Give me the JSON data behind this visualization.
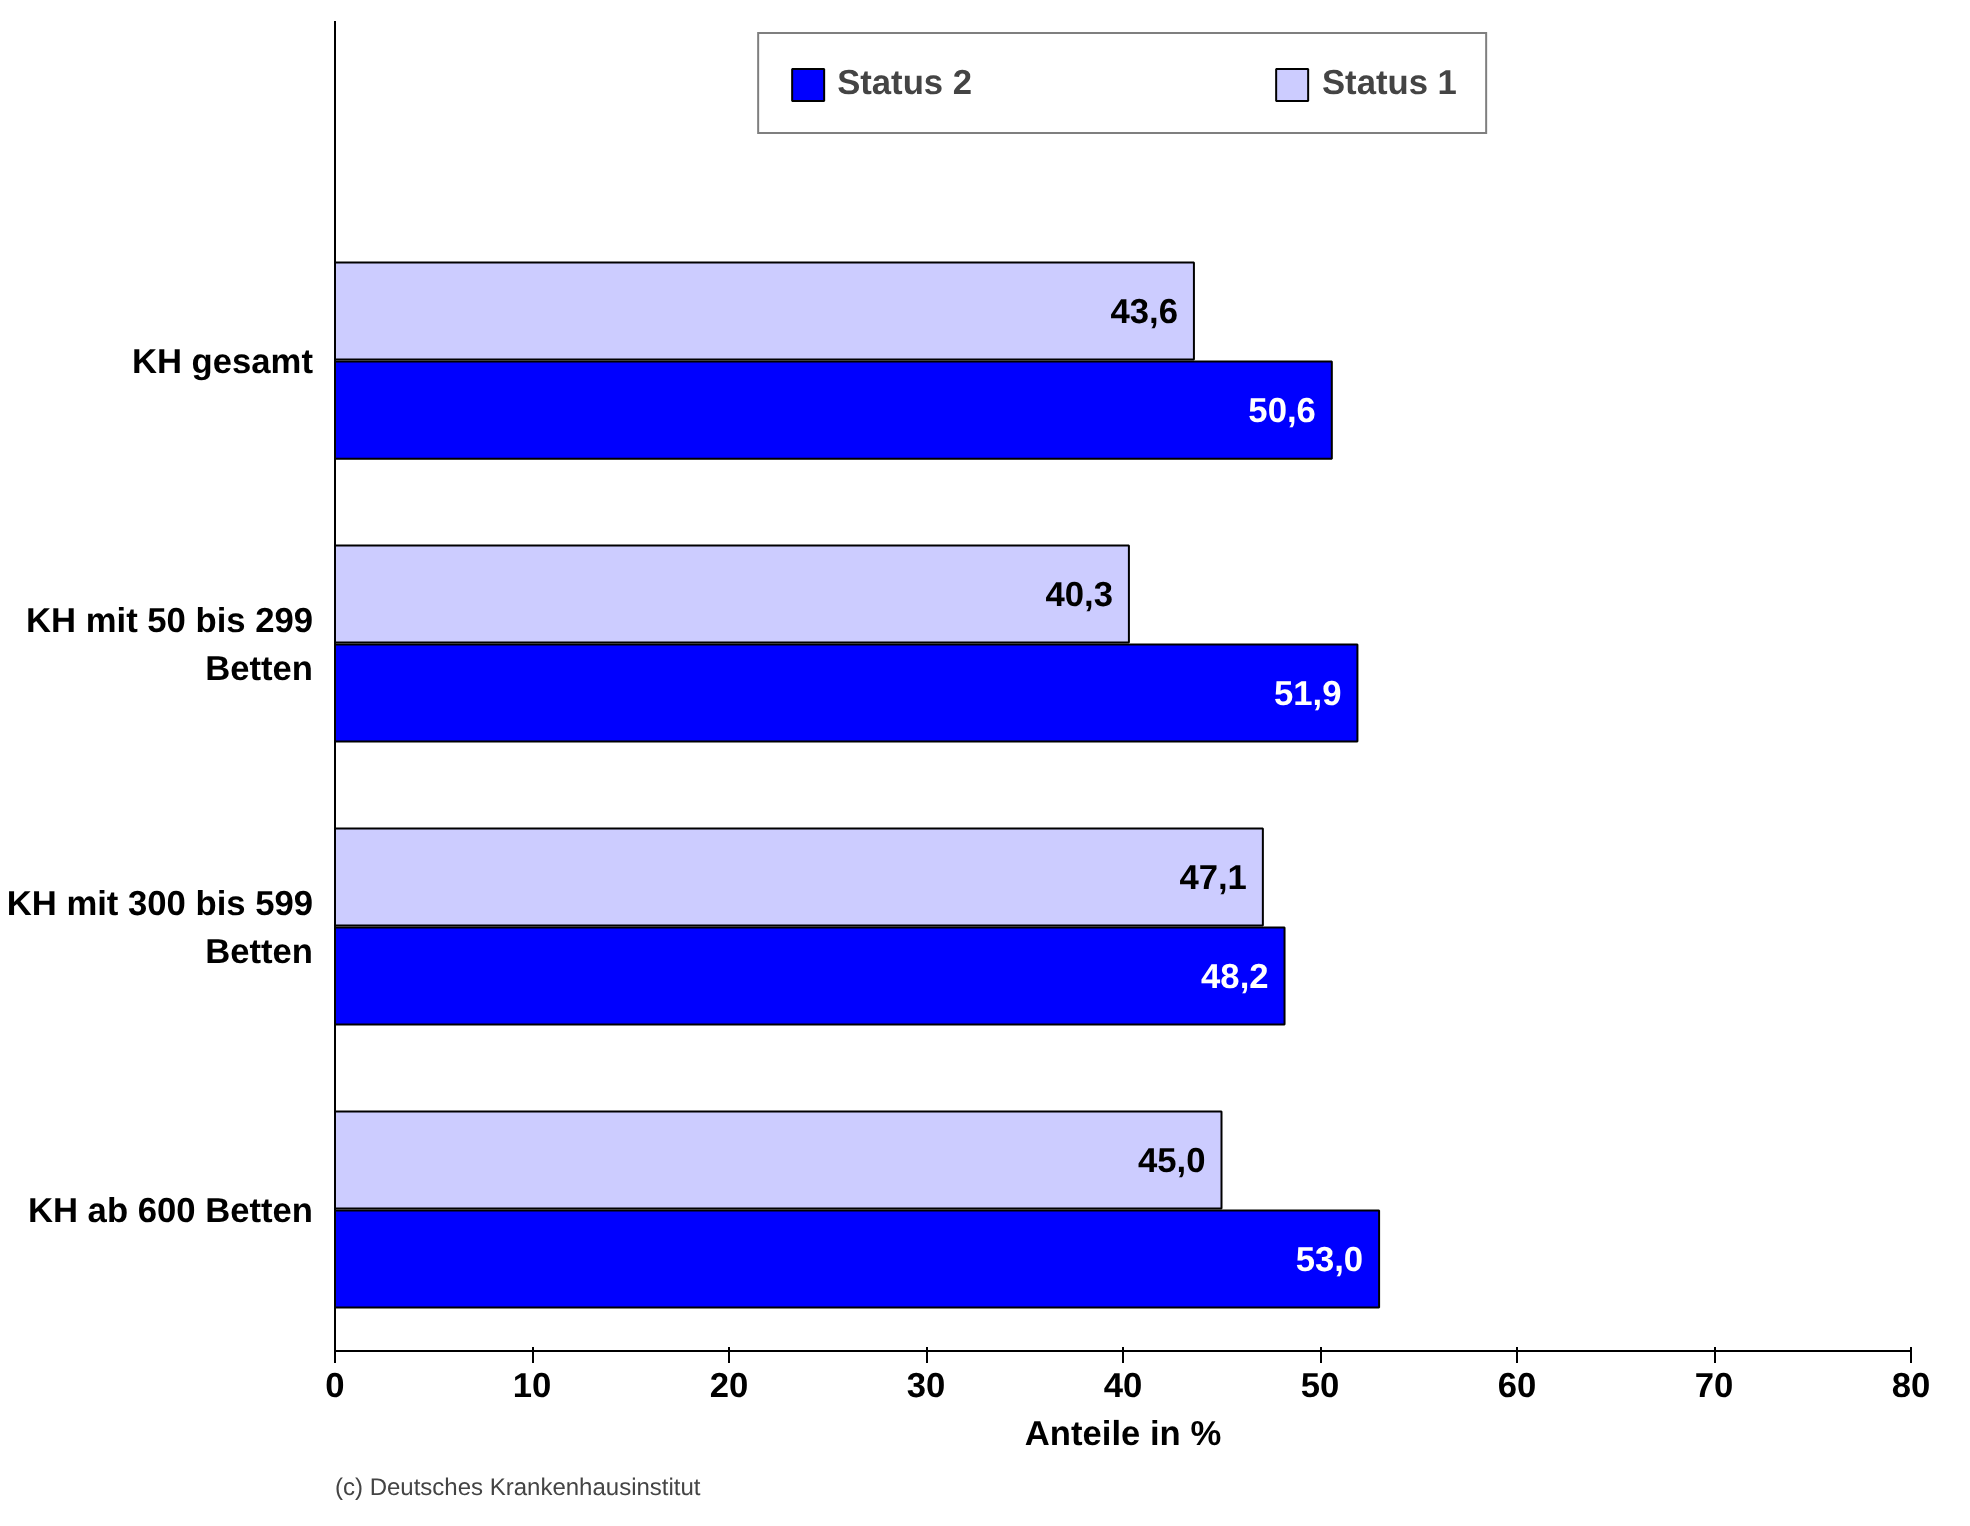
{
  "chart_data": {
    "type": "bar",
    "orientation": "horizontal",
    "categories": [
      "KH gesamt",
      "KH mit 50 bis 299 Betten",
      "KH mit 300 bis 599 Betten",
      "KH ab 600 Betten"
    ],
    "series": [
      {
        "name": "Status 2",
        "color": "#0000ff",
        "values": [
          50.6,
          51.9,
          48.2,
          53.0
        ],
        "value_labels": [
          "50,6",
          "51,9",
          "48,2",
          "53,0"
        ]
      },
      {
        "name": "Status 1",
        "color": "#ccccff",
        "values": [
          43.6,
          40.3,
          47.1,
          45.0
        ],
        "value_labels": [
          "43,6",
          "40,3",
          "47,1",
          "45,0"
        ]
      }
    ],
    "xlim": [
      0,
      80
    ],
    "xticks": [
      0,
      10,
      20,
      30,
      40,
      50,
      60,
      70,
      80
    ],
    "xlabel": "Anteile in %",
    "legend": "top",
    "grid": false,
    "annotations": [
      "(c) Deutsches Krankenhausinstitut"
    ]
  }
}
